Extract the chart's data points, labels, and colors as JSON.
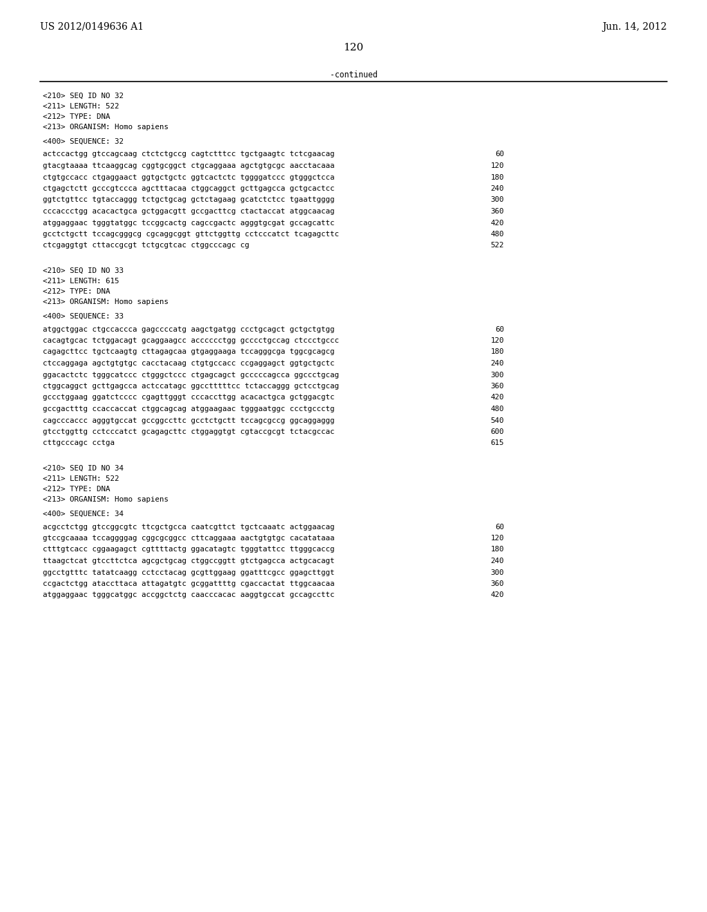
{
  "header_left": "US 2012/0149636 A1",
  "header_right": "Jun. 14, 2012",
  "page_number": "120",
  "continued_text": "-continued",
  "background_color": "#ffffff",
  "text_color": "#000000",
  "font_size_header": 10.0,
  "font_size_page": 11.0,
  "font_size_mono": 7.8,
  "sections": [
    {
      "meta": [
        "<210> SEQ ID NO 32",
        "<211> LENGTH: 522",
        "<212> TYPE: DNA",
        "<213> ORGANISM: Homo sapiens"
      ],
      "seq_label": "<400> SEQUENCE: 32",
      "sequence_lines": [
        [
          "actccactgg gtccagcaag ctctctgccg cagtctttcc tgctgaagtc tctcgaacag",
          "60"
        ],
        [
          "gtacgtaaaa ttcaaggcag cggtgcggct ctgcaggaaa agctgtgcgc aacctacaaa",
          "120"
        ],
        [
          "ctgtgccacc ctgaggaact ggtgctgctc ggtcactctc tggggatccc gtgggctcca",
          "180"
        ],
        [
          "ctgagctctt gcccgtccca agctttacaa ctggcaggct gcttgagcca gctgcactcc",
          "240"
        ],
        [
          "ggtctgttcc tgtaccaggg tctgctgcag gctctagaag gcatctctcc tgaattgggg",
          "300"
        ],
        [
          "cccaccctgg acacactgca gctggacgtt gccgacttcg ctactaccat atggcaacag",
          "360"
        ],
        [
          "atggaggaac tgggtatggc tccggcactg cagccgactc agggtgcgat gccagcattc",
          "420"
        ],
        [
          "gcctctgctt tccagcgggcg cgcaggcggt gttctggttg cctcccatct tcagagcttc",
          "480"
        ],
        [
          "ctcgaggtgt cttaccgcgt tctgcgtcac ctggcccagc cg",
          "522"
        ]
      ]
    },
    {
      "meta": [
        "<210> SEQ ID NO 33",
        "<211> LENGTH: 615",
        "<212> TYPE: DNA",
        "<213> ORGANISM: Homo sapiens"
      ],
      "seq_label": "<400> SEQUENCE: 33",
      "sequence_lines": [
        [
          "atggctggac ctgccaccca gagccccatg aagctgatgg ccctgcagct gctgctgtgg",
          "60"
        ],
        [
          "cacagtgcac tctggacagt gcaggaagcc acccccctgg gcccctgccag ctccctgccc",
          "120"
        ],
        [
          "cagagcttcc tgctcaagtg cttagagcaa gtgaggaaga tccagggcga tggcgcagcg",
          "180"
        ],
        [
          "ctccaggaga agctgtgtgc cacctacaag ctgtgccacc ccgaggagct ggtgctgctc",
          "240"
        ],
        [
          "ggacactctc tgggcatccc ctgggctccc ctgagcagct gcccccagcca ggccctgcag",
          "300"
        ],
        [
          "ctggcaggct gcttgagcca actccatagc ggcctttttcc tctaccaggg gctcctgcag",
          "360"
        ],
        [
          "gccctggaag ggatctcccc cgagttgggt cccaccttgg acacactgca gctggacgtc",
          "420"
        ],
        [
          "gccgactttg ccaccaccat ctggcagcag atggaagaac tgggaatggc ccctgccctg",
          "480"
        ],
        [
          "cagcccaccc agggtgccat gccggccttc gcctctgctt tccagcgccg ggcaggaggg",
          "540"
        ],
        [
          "gtcctggttg cctcccatct gcagagcttc ctggaggtgt cgtaccgcgt tctacgccac",
          "600"
        ],
        [
          "cttgcccagc cctga",
          "615"
        ]
      ]
    },
    {
      "meta": [
        "<210> SEQ ID NO 34",
        "<211> LENGTH: 522",
        "<212> TYPE: DNA",
        "<213> ORGANISM: Homo sapiens"
      ],
      "seq_label": "<400> SEQUENCE: 34",
      "sequence_lines": [
        [
          "acgcctctgg gtccggcgtc ttcgctgcca caatcgttct tgctcaaatc actggaacag",
          "60"
        ],
        [
          "gtccgcaaaa tccaggggag cggcgcggcc cttcaggaaa aactgtgtgc cacatataaa",
          "120"
        ],
        [
          "ctttgtcacc cggaagagct cgttttactg ggacatagtc tgggtattcc ttgggcaccg",
          "180"
        ],
        [
          "ttaagctcat gtccttctca agcgctgcag ctggccggtt gtctgagcca actgcacagt",
          "240"
        ],
        [
          "ggcctgtttc tatatcaagg cctcctacag gcgttggaag ggatttcgcc ggagcttggt",
          "300"
        ],
        [
          "ccgactctgg ataccttaca attagatgtc gcggattttg cgaccactat ttggcaacaa",
          "360"
        ],
        [
          "atggaggaac tgggcatggc accggctctg caacccacac aaggtgccat gccagccttc",
          "420"
        ]
      ]
    }
  ]
}
